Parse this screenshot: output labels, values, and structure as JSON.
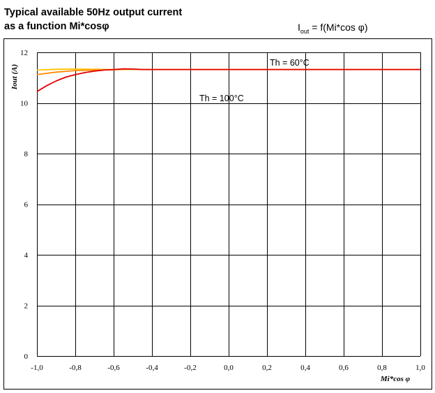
{
  "header": {
    "title_line1": "Typical available 50Hz output current",
    "title_line2": "as a function Mi*cosφ",
    "formula_main": "I",
    "formula_sub": "out",
    "formula_rest": " = f(Mi*cos φ)"
  },
  "chart_data": {
    "type": "line",
    "xlabel": "Mi*cos φ",
    "ylabel": "Iout (A)",
    "xlim": [
      -1.0,
      1.0
    ],
    "ylim": [
      0,
      12
    ],
    "xticks": [
      -1.0,
      -0.8,
      -0.6,
      -0.4,
      -0.2,
      0.0,
      0.2,
      0.4,
      0.6,
      0.8,
      1.0
    ],
    "xtick_labels": [
      "-1,0",
      "-0,8",
      "-0,6",
      "-0,4",
      "-0,2",
      "0,0",
      "0,2",
      "0,4",
      "0,6",
      "0,8",
      "1,0"
    ],
    "yticks": [
      0,
      2,
      4,
      6,
      8,
      10,
      12
    ],
    "ytick_labels": [
      "0",
      "2",
      "4",
      "6",
      "8",
      "10",
      "12"
    ],
    "grid": true,
    "series": [
      {
        "name": "Th = 60°C",
        "color": "#ffbf00",
        "x": [
          -1.0,
          -0.9,
          -0.8,
          -0.7,
          -0.6,
          -0.55,
          -0.5,
          -0.4,
          -0.2,
          0.0,
          0.2,
          0.4,
          0.6,
          0.8,
          1.0
        ],
        "y": [
          11.3,
          11.33,
          11.34,
          11.33,
          11.32,
          11.33,
          11.33,
          11.32,
          11.32,
          11.32,
          11.32,
          11.32,
          11.32,
          11.32,
          11.32
        ]
      },
      {
        "name": "Th = 100°C",
        "color": "#ff8c00",
        "x": [
          -1.0,
          -0.9,
          -0.8,
          -0.7,
          -0.6,
          -0.55,
          -0.5,
          -0.4,
          -0.2,
          0.0,
          0.2,
          0.4,
          0.6,
          0.8,
          1.0
        ],
        "y": [
          11.12,
          11.22,
          11.28,
          11.3,
          11.31,
          11.33,
          11.33,
          11.32,
          11.32,
          11.32,
          11.32,
          11.32,
          11.32,
          11.32,
          11.32
        ]
      },
      {
        "name": "",
        "color": "#e00000",
        "x": [
          -1.0,
          -0.95,
          -0.9,
          -0.85,
          -0.8,
          -0.75,
          -0.7,
          -0.65,
          -0.6,
          -0.55,
          -0.5,
          -0.45,
          -0.4,
          -0.2,
          0.0,
          0.2,
          0.4,
          0.6,
          0.8,
          1.0
        ],
        "y": [
          10.45,
          10.68,
          10.87,
          11.02,
          11.12,
          11.2,
          11.26,
          11.3,
          11.32,
          11.35,
          11.34,
          11.32,
          11.32,
          11.32,
          11.32,
          11.32,
          11.32,
          11.32,
          11.32,
          11.32
        ]
      }
    ],
    "annotations": [
      {
        "text": "Th = 60°C",
        "x": 0.2,
        "y": 11.65
      },
      {
        "text": "Th = 100°C",
        "x": -0.3,
        "y": 10.05
      }
    ]
  }
}
